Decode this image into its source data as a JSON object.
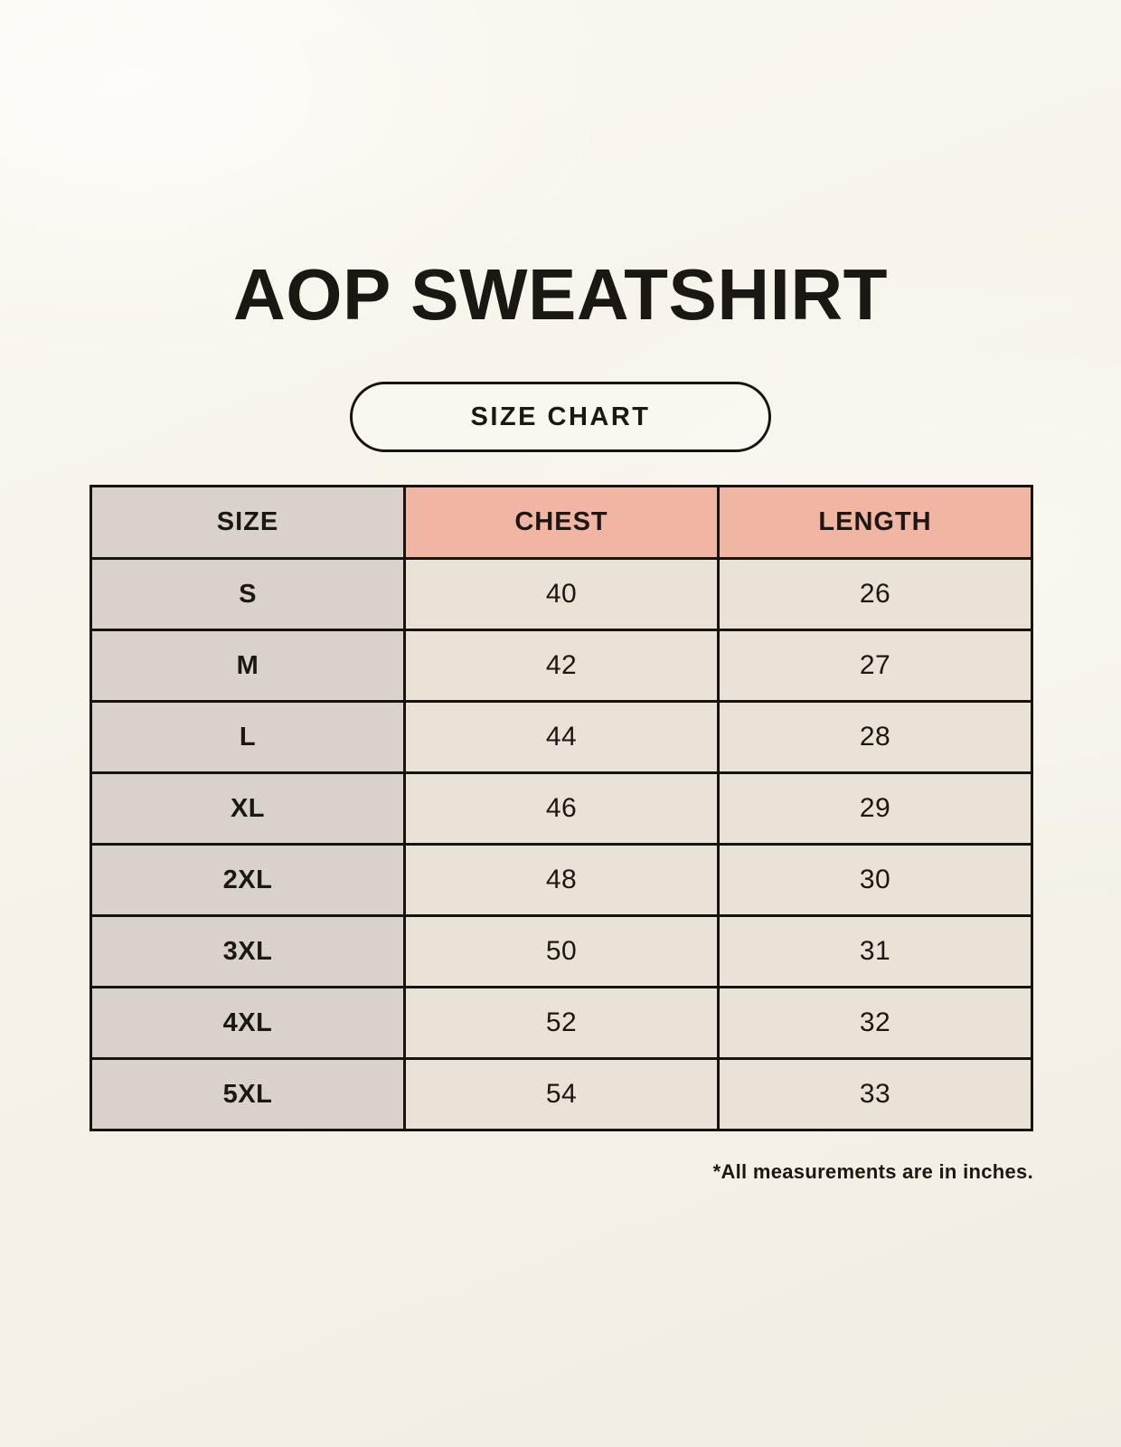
{
  "header": {
    "title": "AOP SWEATSHIRT",
    "badge_label": "SIZE CHART"
  },
  "footer": {
    "note": "*All measurements are in inches."
  },
  "chart_data": {
    "type": "table",
    "title": "AOP SWEATSHIRT",
    "subtitle": "SIZE CHART",
    "columns": [
      "SIZE",
      "CHEST",
      "LENGTH"
    ],
    "rows": [
      [
        "S",
        "40",
        "26"
      ],
      [
        "M",
        "42",
        "27"
      ],
      [
        "L",
        "44",
        "28"
      ],
      [
        "XL",
        "46",
        "29"
      ],
      [
        "2XL",
        "48",
        "30"
      ],
      [
        "3XL",
        "50",
        "31"
      ],
      [
        "4XL",
        "52",
        "32"
      ],
      [
        "5XL",
        "54",
        "33"
      ]
    ],
    "units_note": "*All measurements are in inches.",
    "layout": {
      "grid": "on",
      "accent_header_columns": [
        "CHEST",
        "LENGTH"
      ],
      "label_column_shaded": true
    }
  },
  "colors": {
    "background": "#f8f4ec",
    "accent_header": "#f1b5a3",
    "size_column": "#d9d2cb",
    "value_cell": "#e9e2d6",
    "border": "#17130f",
    "text": "#1b1713"
  }
}
